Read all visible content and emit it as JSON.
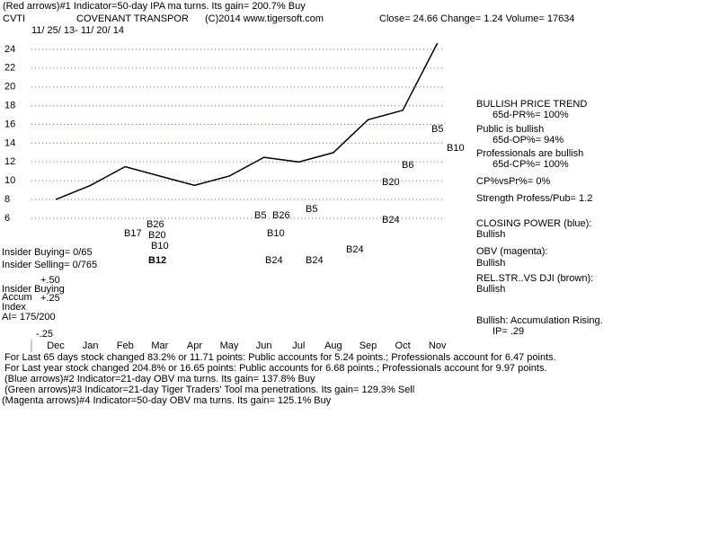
{
  "chart_data": {
    "type": "line",
    "title": "COVENANT TRANSPOR",
    "categories": [
      "Dec",
      "Jan",
      "Feb",
      "Mar",
      "Apr",
      "May",
      "Jun",
      "Jul",
      "Aug",
      "Sep",
      "Oct",
      "Nov"
    ],
    "series": [
      {
        "color": "#000000",
        "values": [
          8,
          9.5,
          11.5,
          10.5,
          9.5,
          10.5,
          12.5,
          12,
          13,
          16.5,
          17.5,
          24.66
        ]
      }
    ],
    "ylim": [
      6,
      26
    ],
    "yticks": [
      6,
      8,
      10,
      12,
      14,
      16,
      18,
      20,
      22,
      24
    ],
    "grid": true,
    "annotations": [
      "(Red arrows)#1 Indicator=50-day IPA ma turns. Its gain= 200.7% Buy",
      "CVTI",
      "(C)2014 www.tigersoft.com",
      "Close=  24.66  Change= 1.24 Volume= 17634",
      "11/ 25/ 13- 11/ 20/ 14",
      "BULLISH PRICE TREND",
      "65d-PR%= 100%",
      "Public is bullish",
      "65d-OP%= 94%",
      "Professionals are bullish",
      "65d-CP%= 100%",
      "CP%vsPr%=  0%",
      "Strength Profess/Pub= 1.2",
      "CLOSING POWER (blue):",
      "Bullish",
      "OBV (magenta):",
      "Bullish",
      "REL.STR..VS DJI (brown):",
      "Bullish",
      "Bullish: Accumulation Rising.",
      "IP=  .29",
      "Insider Buying= 0/65",
      "Insider Selling= 0/765",
      "+.50",
      "Insider Buying",
      "Accum",
      "+.25",
      "Index",
      "AI= 175/200",
      "-.25",
      "For Last 65 days stock changed  83.2% or  11.71 points:  Public accounts for  5.24 points.;  Professionals account for  6.47 points.",
      "For Last year stock changed  204.8% or  16.65 points:  Public accounts for  6.68 points.;  Professionals account for  9.97 points.",
      "(Blue arrows)#2 Indicator=21-day OBV ma turns. Its gain= 137.8% Buy",
      "(Green arrows)#3 Indicator=21-day Tiger Traders' Tool ma penetrations. Its gain= 129.3% Sell",
      "(Magenta arrows)#4 Indicator=50-day OBV ma turns. Its gain= 125.1% Buy"
    ],
    "signals": [
      "B10",
      "B5",
      "B6",
      "B20",
      "B24",
      "B24",
      "B24",
      "B24",
      "B10",
      "B12",
      "B10",
      "B20",
      "B17",
      "B26",
      "B5",
      "B26",
      "B5"
    ]
  }
}
